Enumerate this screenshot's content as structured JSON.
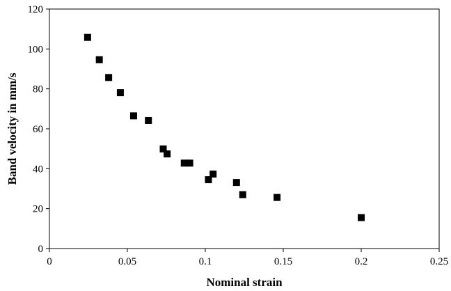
{
  "chart_data": {
    "type": "scatter",
    "title": "",
    "xlabel": "Nominal strain",
    "ylabel": "Band velocity in mm/s",
    "xlim": [
      0,
      0.25
    ],
    "ylim": [
      0,
      120
    ],
    "x_ticks": [
      0,
      0.05,
      0.1,
      0.15,
      0.2,
      0.25
    ],
    "x_tick_labels": [
      "0",
      "0.05",
      "0.1",
      "0.15",
      "0.2",
      "0.25"
    ],
    "y_ticks": [
      0,
      20,
      40,
      60,
      80,
      100,
      120
    ],
    "y_tick_labels": [
      "0",
      "20",
      "40",
      "60",
      "80",
      "100",
      "120"
    ],
    "grid": false,
    "legend": "none",
    "marker": "square",
    "marker_color": "#000000",
    "series": [
      {
        "points": [
          {
            "x": 0.0245,
            "y": 105.8
          },
          {
            "x": 0.032,
            "y": 94.6
          },
          {
            "x": 0.038,
            "y": 85.7
          },
          {
            "x": 0.0455,
            "y": 78.1
          },
          {
            "x": 0.054,
            "y": 66.5
          },
          {
            "x": 0.0635,
            "y": 64.2
          },
          {
            "x": 0.073,
            "y": 49.9
          },
          {
            "x": 0.0755,
            "y": 47.4
          },
          {
            "x": 0.0865,
            "y": 42.8
          },
          {
            "x": 0.09,
            "y": 42.8
          },
          {
            "x": 0.102,
            "y": 34.5
          },
          {
            "x": 0.105,
            "y": 37.3
          },
          {
            "x": 0.12,
            "y": 33.1
          },
          {
            "x": 0.124,
            "y": 27.0
          },
          {
            "x": 0.146,
            "y": 25.6
          },
          {
            "x": 0.2,
            "y": 15.5
          }
        ]
      }
    ]
  }
}
